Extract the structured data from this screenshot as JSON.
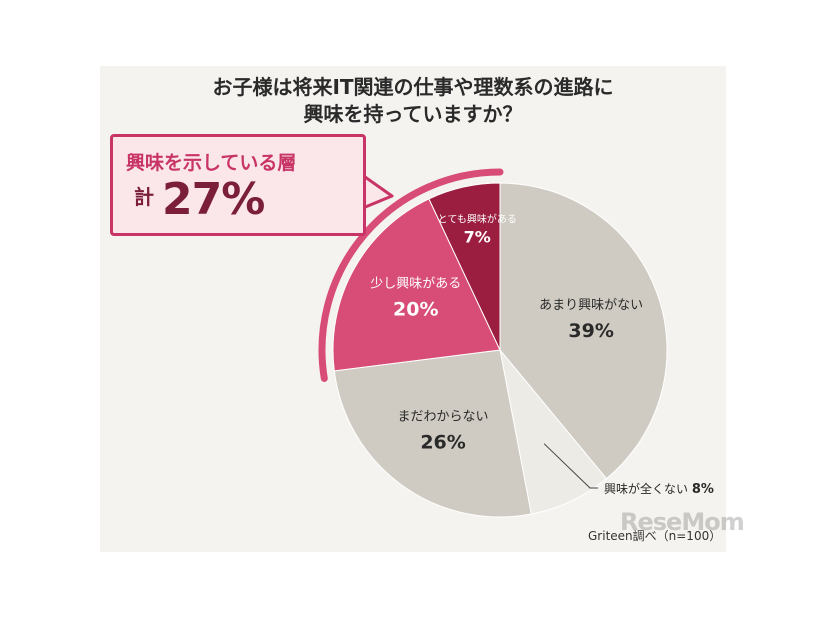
{
  "title_lines": [
    "お子様は将来IT関連の仕事や理数系の進路に",
    "興味を持っていますか？"
  ],
  "callout": {
    "text": "興味を示している層",
    "total_label": "計",
    "total_value": "27%"
  },
  "source": "Griteen調べ（n=100）",
  "logo": "ReseMom",
  "chart_data": {
    "type": "pie",
    "start_angle_deg": 0,
    "direction": "clockwise",
    "slices": [
      {
        "label": "あまり興味がない",
        "value": 39,
        "value_label": "39%",
        "color": "#cfcbc3"
      },
      {
        "label": "興味が全くない",
        "value": 8,
        "value_label": "8%",
        "color": "#ecebe6"
      },
      {
        "label": "まだわからない",
        "value": 26,
        "value_label": "26%",
        "color": "#cfcbc3"
      },
      {
        "label": "少し興味がある",
        "value": 20,
        "value_label": "20%",
        "color": "#d84c78"
      },
      {
        "label": "とても興味がある",
        "value": 7,
        "value_label": "7%",
        "color": "#9b1d40"
      }
    ],
    "highlight_arc_color": "#d84c78",
    "colors": {
      "interested_dark": "#9b1d40",
      "interested": "#d84c78",
      "neutral": "#cfcbc3",
      "light": "#ecebe6",
      "label_white": "#ffffff",
      "label_dark": "#2a2a2a"
    }
  }
}
